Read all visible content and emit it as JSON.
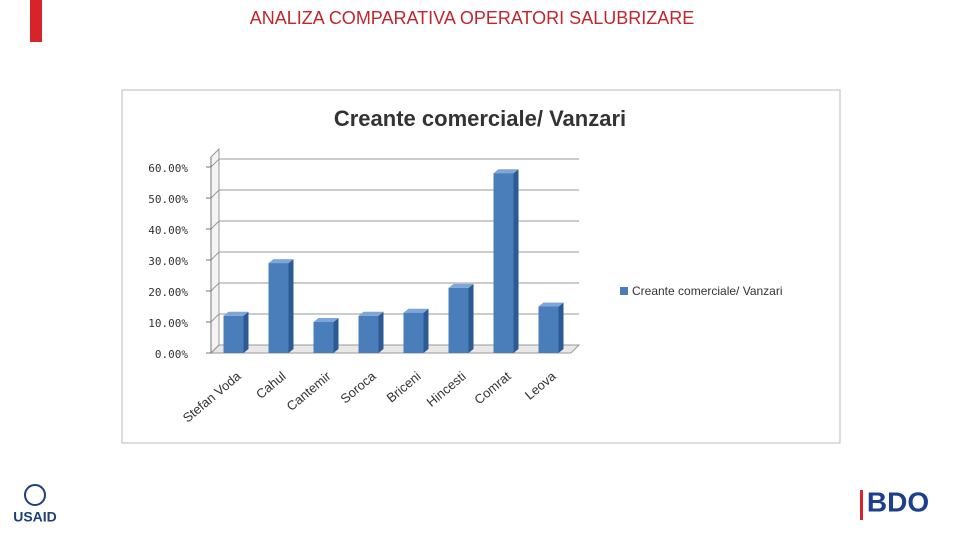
{
  "slide_title": "ANALIZA COMPARATIVA OPERATORI SALUBRIZARE",
  "logos": {
    "left": "USAID",
    "right": "BDO"
  },
  "chart_data": {
    "type": "bar",
    "title": "Creante comerciale/ Vanzari",
    "categories": [
      "Stefan Voda",
      "Cahul",
      "Cantemir",
      "Soroca",
      "Briceni",
      "Hincesti",
      "Comrat",
      "Leova"
    ],
    "series": [
      {
        "name": "Creante comerciale/ Vanzari",
        "color": "#4a7ebb",
        "values": [
          12,
          29,
          10,
          12,
          13,
          21,
          58,
          15
        ]
      }
    ],
    "ylim": [
      0,
      60
    ],
    "yticks": [
      {
        "value": 0,
        "label": "0.00%"
      },
      {
        "value": 10,
        "label": "10.00%"
      },
      {
        "value": 20,
        "label": "20.00%"
      },
      {
        "value": 30,
        "label": "30.00%"
      },
      {
        "value": 40,
        "label": "40.00%"
      },
      {
        "value": 50,
        "label": "50.00%"
      },
      {
        "value": 60,
        "label": "60.00%"
      }
    ],
    "grid": true,
    "legend": "right"
  }
}
